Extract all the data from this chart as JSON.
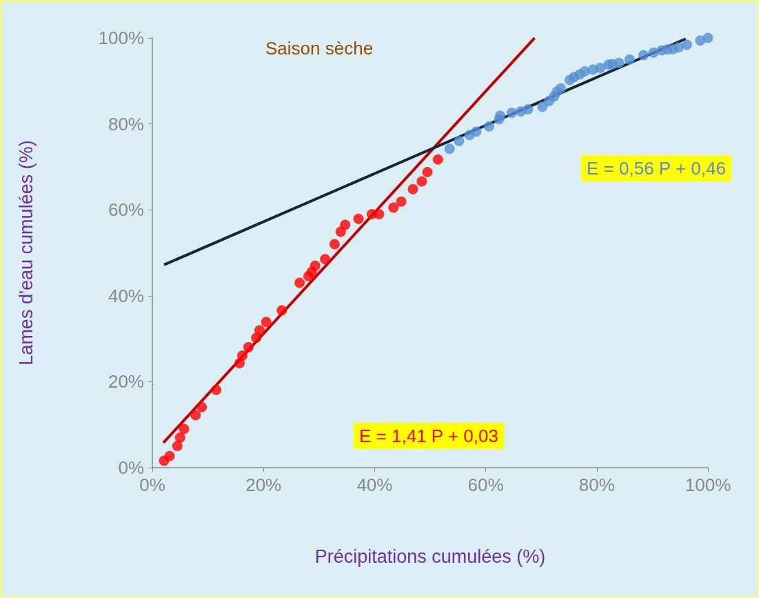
{
  "chart_data": {
    "type": "scatter",
    "title": "Saison sèche",
    "xlabel": "Précipitations cumulées (%)",
    "ylabel": "Lames d'eau cumulées (%)",
    "xlim": [
      0,
      100
    ],
    "ylim": [
      0,
      100
    ],
    "xticks": [
      {
        "value": 0,
        "label": "0%"
      },
      {
        "value": 20,
        "label": "20%"
      },
      {
        "value": 40,
        "label": "40%"
      },
      {
        "value": 60,
        "label": "60%"
      },
      {
        "value": 80,
        "label": "80%"
      },
      {
        "value": 100,
        "label": "100%"
      }
    ],
    "yticks": [
      {
        "value": 0,
        "label": "0%"
      },
      {
        "value": 20,
        "label": "20%"
      },
      {
        "value": 40,
        "label": "40%"
      },
      {
        "value": 60,
        "label": "60%"
      },
      {
        "value": 80,
        "label": "80%"
      },
      {
        "value": 100,
        "label": "100%"
      }
    ],
    "grid": false,
    "series": [
      {
        "marker": "circle",
        "color": "#ff0000",
        "x": [
          2.1,
          3.1,
          4.5,
          5.0,
          5.7,
          7.8,
          8.9,
          11.5,
          15.7,
          16.2,
          17.3,
          18.7,
          19.3,
          20.5,
          23.3,
          26.5,
          28.1,
          28.7,
          29.3,
          31.1,
          32.8,
          33.9,
          34.7,
          37.1,
          39.5,
          40.8,
          43.4,
          44.8,
          46.9,
          48.5,
          49.5,
          51.4
        ],
        "values": [
          1.6,
          2.7,
          5.0,
          7.0,
          9.0,
          12.2,
          14.1,
          18.1,
          24.3,
          26.1,
          28.0,
          30.2,
          32.0,
          33.9,
          36.6,
          43.0,
          44.6,
          45.6,
          47.0,
          48.5,
          52.0,
          54.9,
          56.5,
          57.9,
          59.0,
          59.0,
          60.5,
          61.9,
          64.8,
          66.6,
          68.8,
          71.7
        ]
      },
      {
        "marker": "circle",
        "color": "#558ed5",
        "x": [
          53.5,
          55.2,
          57.1,
          58.3,
          60.6,
          62.4,
          62.6,
          64.7,
          66.3,
          67.6,
          70.2,
          71.4,
          72.3,
          72.8,
          73.5,
          75.1,
          75.9,
          76.9,
          77.8,
          79.3,
          80.6,
          82.1,
          82.8,
          84.0,
          85.9,
          88.4,
          90.2,
          91.7,
          92.7,
          93.7,
          94.7,
          96.2,
          98.6,
          100
        ],
        "values": [
          74.2,
          76.0,
          77.4,
          78.2,
          79.4,
          81.1,
          81.9,
          82.6,
          82.9,
          83.4,
          84.0,
          85.3,
          86.4,
          87.5,
          88.3,
          90.2,
          90.9,
          91.5,
          92.2,
          92.6,
          93.0,
          93.8,
          93.9,
          94.2,
          95.0,
          96.0,
          96.6,
          97.1,
          97.3,
          97.4,
          97.8,
          98.4,
          99.4,
          100
        ]
      },
      {
        "type": "line",
        "color": "#c00000",
        "x": [
          2,
          68.8
        ],
        "values": [
          5.8,
          100
        ]
      },
      {
        "type": "line",
        "color": "#14263e",
        "x": [
          2.1,
          96
        ],
        "values": [
          47.2,
          99.8
        ]
      }
    ],
    "annotations": [
      "E = 1,41 P + 0,03",
      "E = 0,56 P + 0,46"
    ]
  }
}
